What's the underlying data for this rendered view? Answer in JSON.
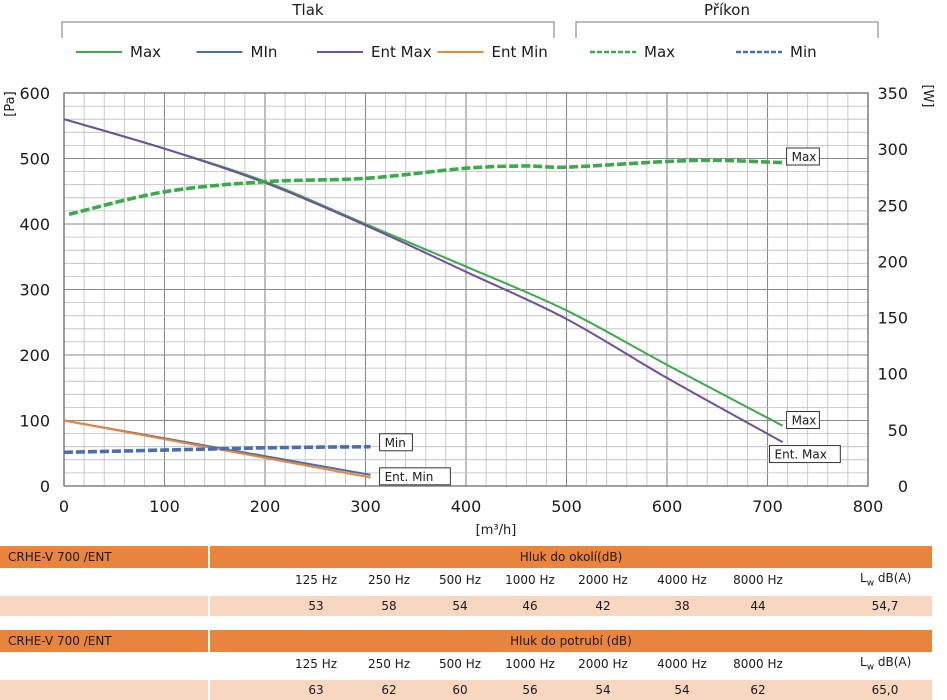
{
  "chart_data": {
    "type": "line",
    "xlabel": "[m³/h]",
    "ylabel_left": "[Pa]",
    "ylabel_right": "[W]",
    "xlim": [
      0,
      800
    ],
    "ylim_left": [
      0,
      600
    ],
    "ylim_right": [
      0,
      350
    ],
    "x_ticks": [
      0,
      100,
      200,
      300,
      400,
      500,
      600,
      700,
      800
    ],
    "y_ticks_left": [
      0,
      100,
      200,
      300,
      400,
      500,
      600
    ],
    "y_ticks_right": [
      0,
      50,
      100,
      150,
      200,
      250,
      300,
      350
    ],
    "grid": true,
    "legend_groups": [
      {
        "title": "Tlak",
        "entries": [
          "Max",
          "MIn",
          "Ent Max",
          "Ent Min"
        ]
      },
      {
        "title": "Příkon",
        "entries": [
          "Max",
          "Min"
        ]
      }
    ],
    "series": [
      {
        "name": "Max",
        "group": "Tlak",
        "axis": "left",
        "style": "solid",
        "color": "#3aaa4a",
        "x": [
          0,
          100,
          200,
          300,
          400,
          500,
          600,
          715
        ],
        "y": [
          560,
          515,
          465,
          400,
          335,
          268,
          185,
          92
        ]
      },
      {
        "name": "MIn",
        "group": "Tlak",
        "axis": "left",
        "style": "solid",
        "color": "#4a6fb0",
        "x": [
          0,
          305
        ],
        "y": [
          100,
          17
        ]
      },
      {
        "name": "Ent Max",
        "group": "Tlak",
        "axis": "left",
        "style": "solid",
        "color": "#70509a",
        "x": [
          0,
          100,
          200,
          300,
          400,
          500,
          600,
          715
        ],
        "y": [
          560,
          515,
          463,
          398,
          327,
          255,
          165,
          67
        ]
      },
      {
        "name": "Ent Min",
        "group": "Tlak",
        "axis": "left",
        "style": "solid",
        "color": "#e8873a",
        "x": [
          0,
          305
        ],
        "y": [
          100,
          13
        ]
      },
      {
        "name": "Max",
        "group": "Příkon",
        "axis": "right",
        "style": "dashed",
        "color": "#3aaa4a",
        "x": [
          5,
          100,
          200,
          300,
          400,
          460,
          500,
          600,
          650,
          715
        ],
        "y": [
          242,
          262,
          271,
          274,
          283,
          285,
          284,
          289,
          290,
          288
        ]
      },
      {
        "name": "Min",
        "group": "Příkon",
        "axis": "right",
        "style": "dashed",
        "color": "#4a6fb0",
        "x": [
          0,
          100,
          200,
          305
        ],
        "y": [
          30,
          32,
          34,
          35
        ]
      }
    ],
    "annotations": [
      {
        "text": "Max",
        "x": 720,
        "y": 293,
        "axis": "right"
      },
      {
        "text": "Max",
        "x": 720,
        "y": 100,
        "axis": "left"
      },
      {
        "text": "Ent. Max",
        "x": 703,
        "y": 48,
        "axis": "left"
      },
      {
        "text": "Min",
        "x": 315,
        "y": 66,
        "axis": "left"
      },
      {
        "text": "Ent. Min",
        "x": 315,
        "y": 14,
        "axis": "left"
      }
    ]
  },
  "tables": [
    {
      "model": "CRHE-V 700   /ENT",
      "title": "Hluk do okolí(dB)",
      "freqs": [
        "125 Hz",
        "250 Hz",
        "500 Hz",
        "1000 Hz",
        "2000 Hz",
        "4000 Hz",
        "8000 Hz"
      ],
      "lw_label": "L",
      "lw_sub": "w",
      "lw_unit": " dB(A)",
      "values": [
        "53",
        "58",
        "54",
        "46",
        "42",
        "38",
        "44"
      ],
      "lw_value": "54,7"
    },
    {
      "model": "CRHE-V 700   /ENT",
      "title": "Hluk do potrubí (dB)",
      "freqs": [
        "125 Hz",
        "250 Hz",
        "500 Hz",
        "1000 Hz",
        "2000 Hz",
        "4000 Hz",
        "8000 Hz"
      ],
      "lw_label": "L",
      "lw_sub": "w",
      "lw_unit": " dB(A)",
      "values": [
        "63",
        "62",
        "60",
        "56",
        "54",
        "54",
        "62"
      ],
      "lw_value": "65,0"
    }
  ]
}
